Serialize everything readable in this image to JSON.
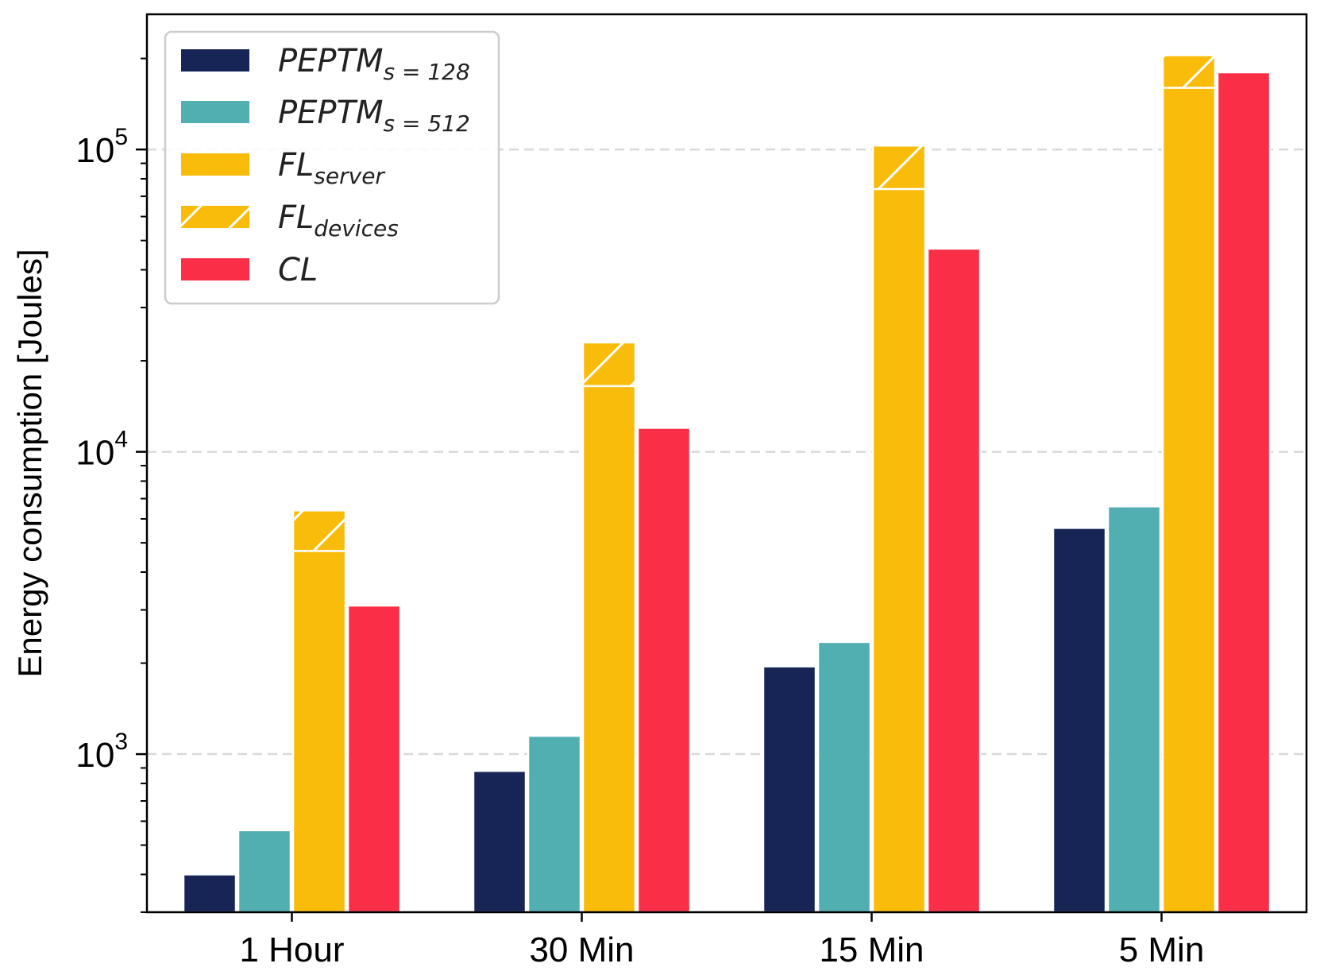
{
  "chart_data": {
    "type": "bar",
    "xlabel": "",
    "ylabel": "Energy consumption [Joules]",
    "yscale": "log",
    "ylim": [
      300,
      280000
    ],
    "yticks": [
      {
        "value": 1000,
        "base": "10",
        "exp": "3"
      },
      {
        "value": 10000,
        "base": "10",
        "exp": "4"
      },
      {
        "value": 100000,
        "base": "10",
        "exp": "5"
      }
    ],
    "grid": "horizontal dashed at major ticks",
    "legend_position": "top-left",
    "categories": [
      "1 Hour",
      "30 Min",
      "15 Min",
      "5 Min"
    ],
    "series": [
      {
        "key": "p128",
        "name_main": "PEPTM",
        "name_sub": "s = 128",
        "color": "#172456",
        "values": [
          400,
          880,
          1950,
          5600
        ]
      },
      {
        "key": "p512",
        "name_main": "PEPTM",
        "name_sub": "s = 512",
        "color": "#52AFB1",
        "values": [
          560,
          1150,
          2350,
          6600
        ]
      },
      {
        "key": "fl_server",
        "name_main": "FL",
        "name_sub": "server",
        "color": "#FABC0A",
        "values": [
          4700,
          16500,
          74000,
          160000
        ]
      },
      {
        "key": "fl_devices",
        "name_main": "FL",
        "name_sub": "devices",
        "color": "#FABC0A",
        "hatched": true,
        "stacked_on": "fl_server",
        "totals": [
          6400,
          23000,
          103000,
          205000
        ]
      },
      {
        "key": "cl",
        "name_main": "CL",
        "name_sub": "",
        "color": "#FB2E47",
        "values": [
          3100,
          12000,
          47000,
          180000
        ]
      }
    ]
  }
}
